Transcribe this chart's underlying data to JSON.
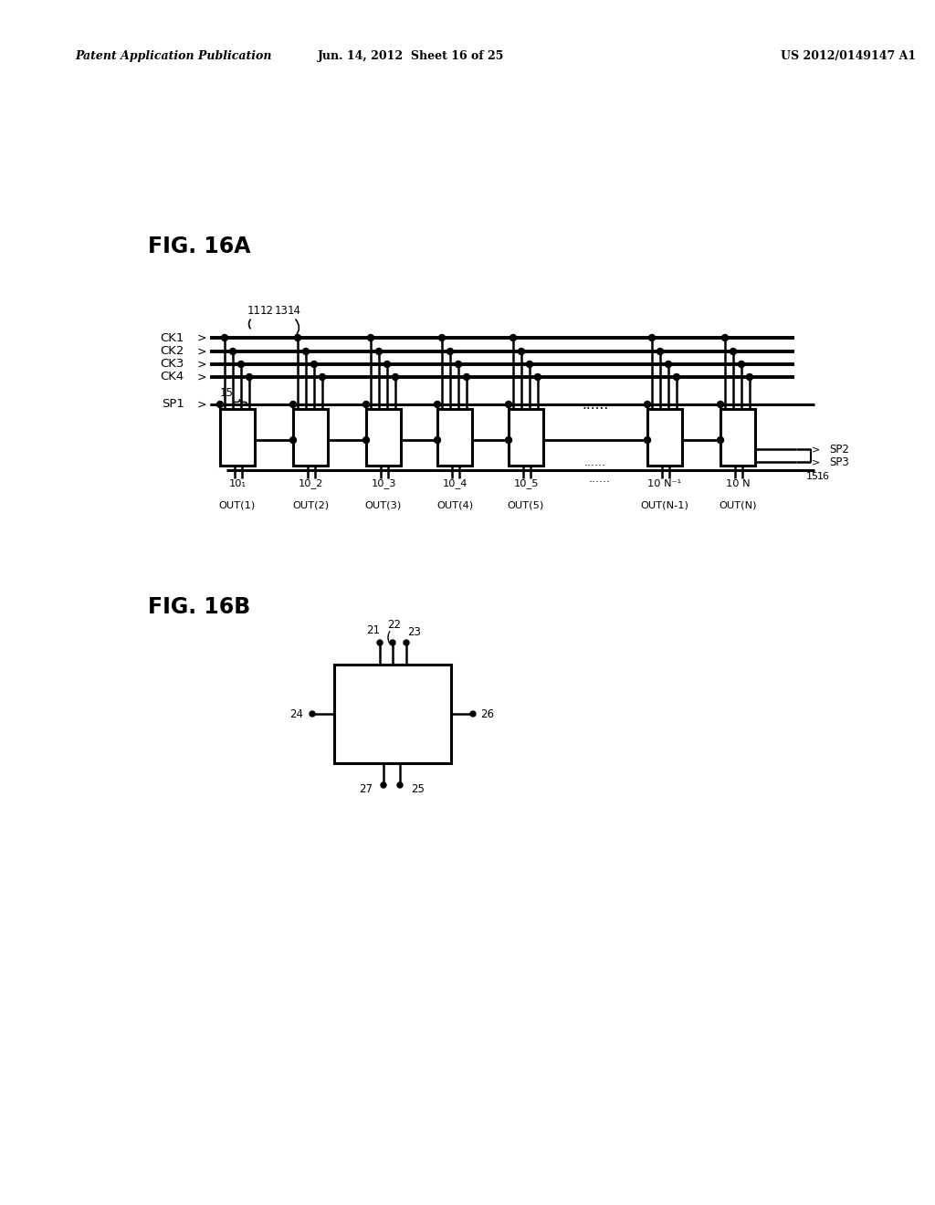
{
  "bg_color": "#ffffff",
  "header_left": "Patent Application Publication",
  "header_center": "Jun. 14, 2012  Sheet 16 of 25",
  "header_right": "US 2012/0149147 A1",
  "fig16a_label": "FIG. 16A",
  "fig16b_label": "FIG. 16B",
  "ck_labels": [
    "CK1",
    "CK2",
    "CK3",
    "CK4"
  ],
  "sp1_label": "SP1",
  "sp2_label": "SP2",
  "sp3_label": "SP3",
  "wire_numbers": [
    "11",
    "12",
    "13",
    "14"
  ],
  "stage_label_15": "15",
  "label_16": "16",
  "stage_names": [
    "10_1",
    "10_2",
    "10_3",
    "10_4",
    "10_5",
    "10 N-1",
    "10 N"
  ],
  "out_names": [
    "OUT(1)",
    "OUT(2)",
    "OUT(3)",
    "OUT(4)",
    "OUT(5)",
    "OUT(N-1)",
    "OUT(N)"
  ],
  "b16b_pins": [
    "21",
    "22",
    "23",
    "24",
    "25",
    "26",
    "27"
  ]
}
